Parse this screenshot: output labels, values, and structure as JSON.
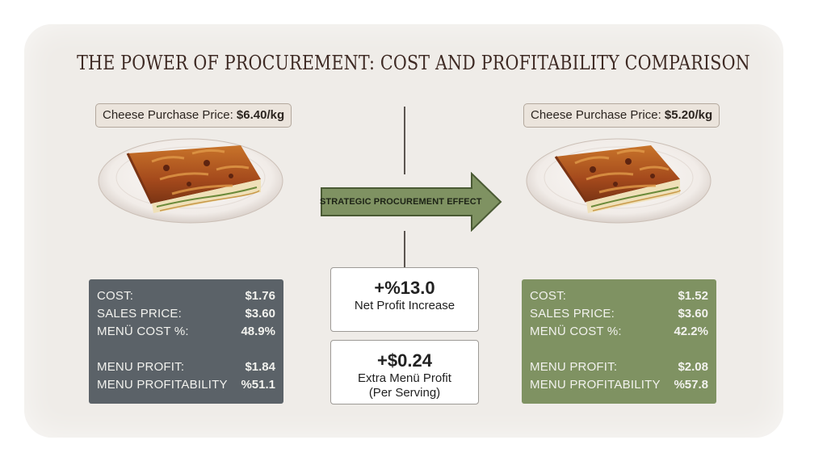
{
  "title": "THE POWER OF PROCUREMENT: COST AND PROFITABILITY COMPARISON",
  "left": {
    "price_label": "Cheese Purchase Price: ",
    "price_value": "$6.40/kg",
    "rows": [
      {
        "label": "COST:",
        "value": "$1.76"
      },
      {
        "label": "SALES PRICE:",
        "value": "$3.60"
      },
      {
        "label": "MENÜ COST %:",
        "value": "48.9%"
      },
      {
        "label": "MENU PROFIT:",
        "value": "$1.84"
      },
      {
        "label": "MENU PROFITABILITY",
        "value": "%51.1"
      }
    ]
  },
  "right": {
    "price_label": "Cheese Purchase Price: ",
    "price_value": "$5.20/kg",
    "rows": [
      {
        "label": "COST:",
        "value": "$1.52"
      },
      {
        "label": "SALES PRICE:",
        "value": "$3.60"
      },
      {
        "label": "MENÜ COST %:",
        "value": "42.2%"
      },
      {
        "label": "MENU PROFIT:",
        "value": "$2.08"
      },
      {
        "label": "MENU PROFITABILITY",
        "value": "%57.8"
      }
    ]
  },
  "arrow_label": "STRATEGIC PROCUREMENT EFFECT",
  "kpis": [
    {
      "value": "+%13.0",
      "label": "Net Profit Increase"
    },
    {
      "value": "+$0.24",
      "label": "Extra Menü Profit",
      "sublabel": "(Per Serving)"
    }
  ],
  "colors": {
    "left_panel": "#5b6268",
    "right_panel": "#7f9262",
    "arrow": "#7f9262",
    "background_card": "#efece8"
  },
  "images": [
    "borek-plate-left",
    "borek-plate-right"
  ]
}
